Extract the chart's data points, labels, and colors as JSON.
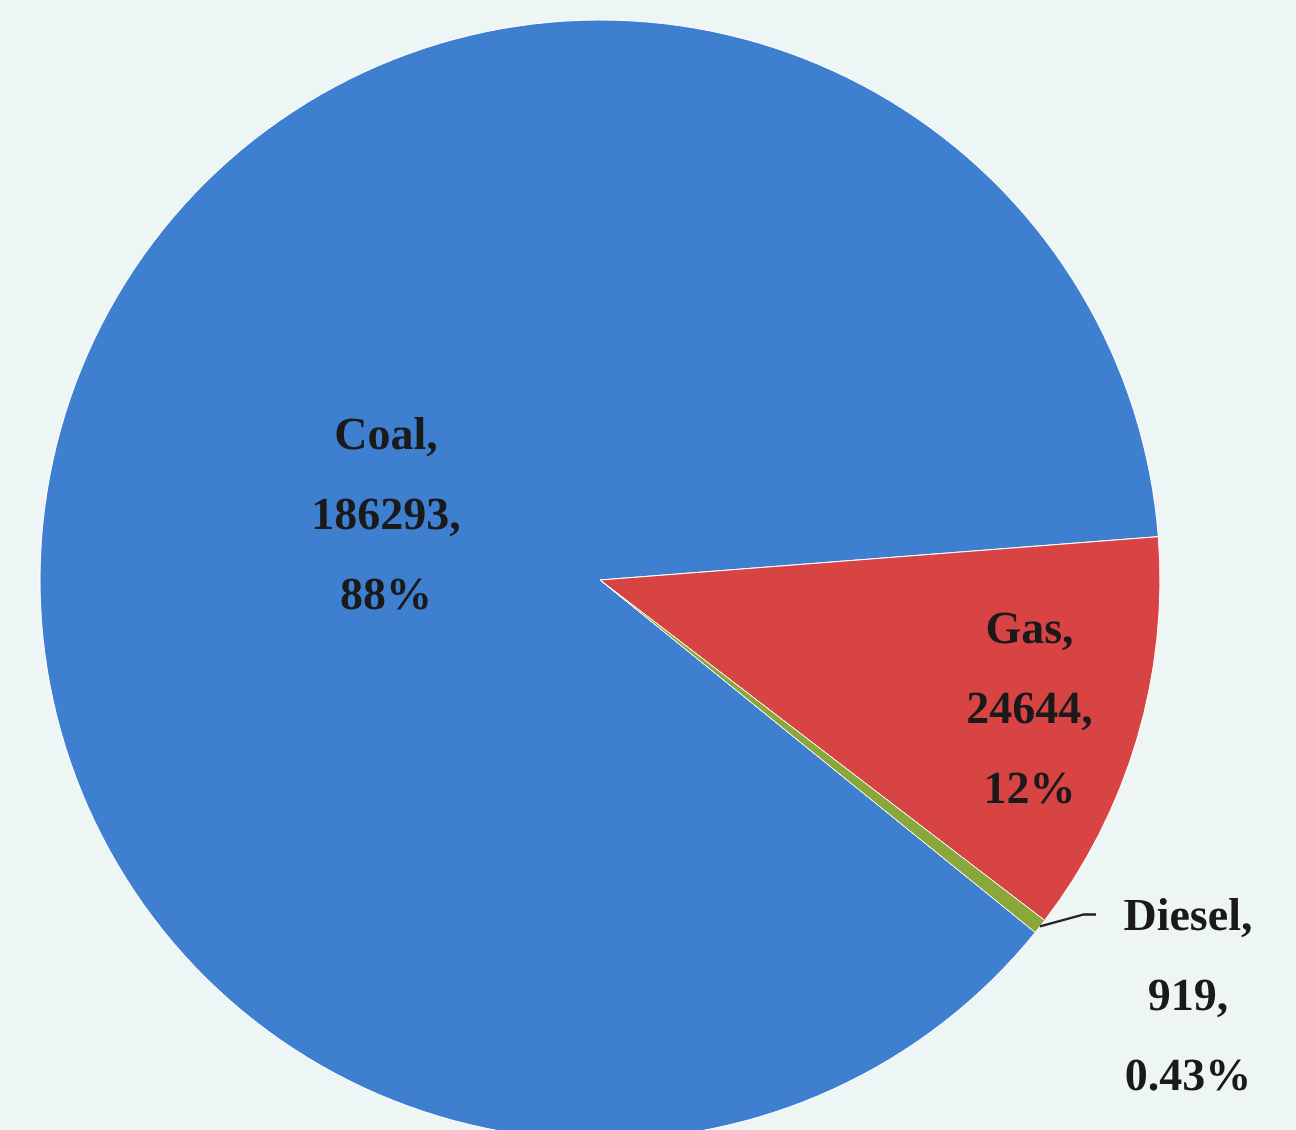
{
  "chart_data": {
    "type": "pie",
    "categories": [
      "Coal",
      "Gas",
      "Diesel"
    ],
    "values": [
      186293,
      24644,
      919
    ],
    "colors": [
      "#3f7fd0",
      "#d84444",
      "#8aa83a"
    ],
    "value_labels": [
      ",\n186293,\n88%",
      ",\n24644,\n12%",
      ",\n919,\n0.43%"
    ]
  }
}
